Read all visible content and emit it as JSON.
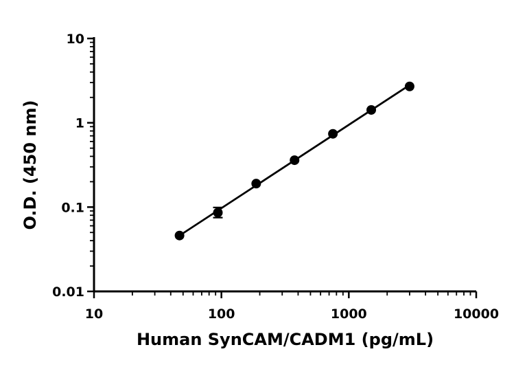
{
  "chart_data": {
    "type": "scatter",
    "xlabel": "Human SynCAM/CADM1 (pg/mL)",
    "ylabel": "O.D. (450 nm)",
    "x_scale": "log",
    "y_scale": "log",
    "xlim": [
      10,
      10000
    ],
    "ylim": [
      0.01,
      10
    ],
    "x_ticks": [
      "10",
      "100",
      "1000",
      "10000"
    ],
    "y_ticks": [
      "0.01",
      "0.1",
      "1",
      "10"
    ],
    "grid": false,
    "legend": "none",
    "series": [
      {
        "points": [
          {
            "x": 46.9,
            "y": 0.046
          },
          {
            "x": 93.8,
            "y": 0.086,
            "error": [
              0.075,
              0.099
            ]
          },
          {
            "x": 187.5,
            "y": 0.19
          },
          {
            "x": 375,
            "y": 0.36
          },
          {
            "x": 750,
            "y": 0.74
          },
          {
            "x": 1500,
            "y": 1.42
          },
          {
            "x": 3000,
            "y": 2.7
          }
        ],
        "fit": "linear fit on log-log scale",
        "color": "#000000"
      }
    ]
  }
}
